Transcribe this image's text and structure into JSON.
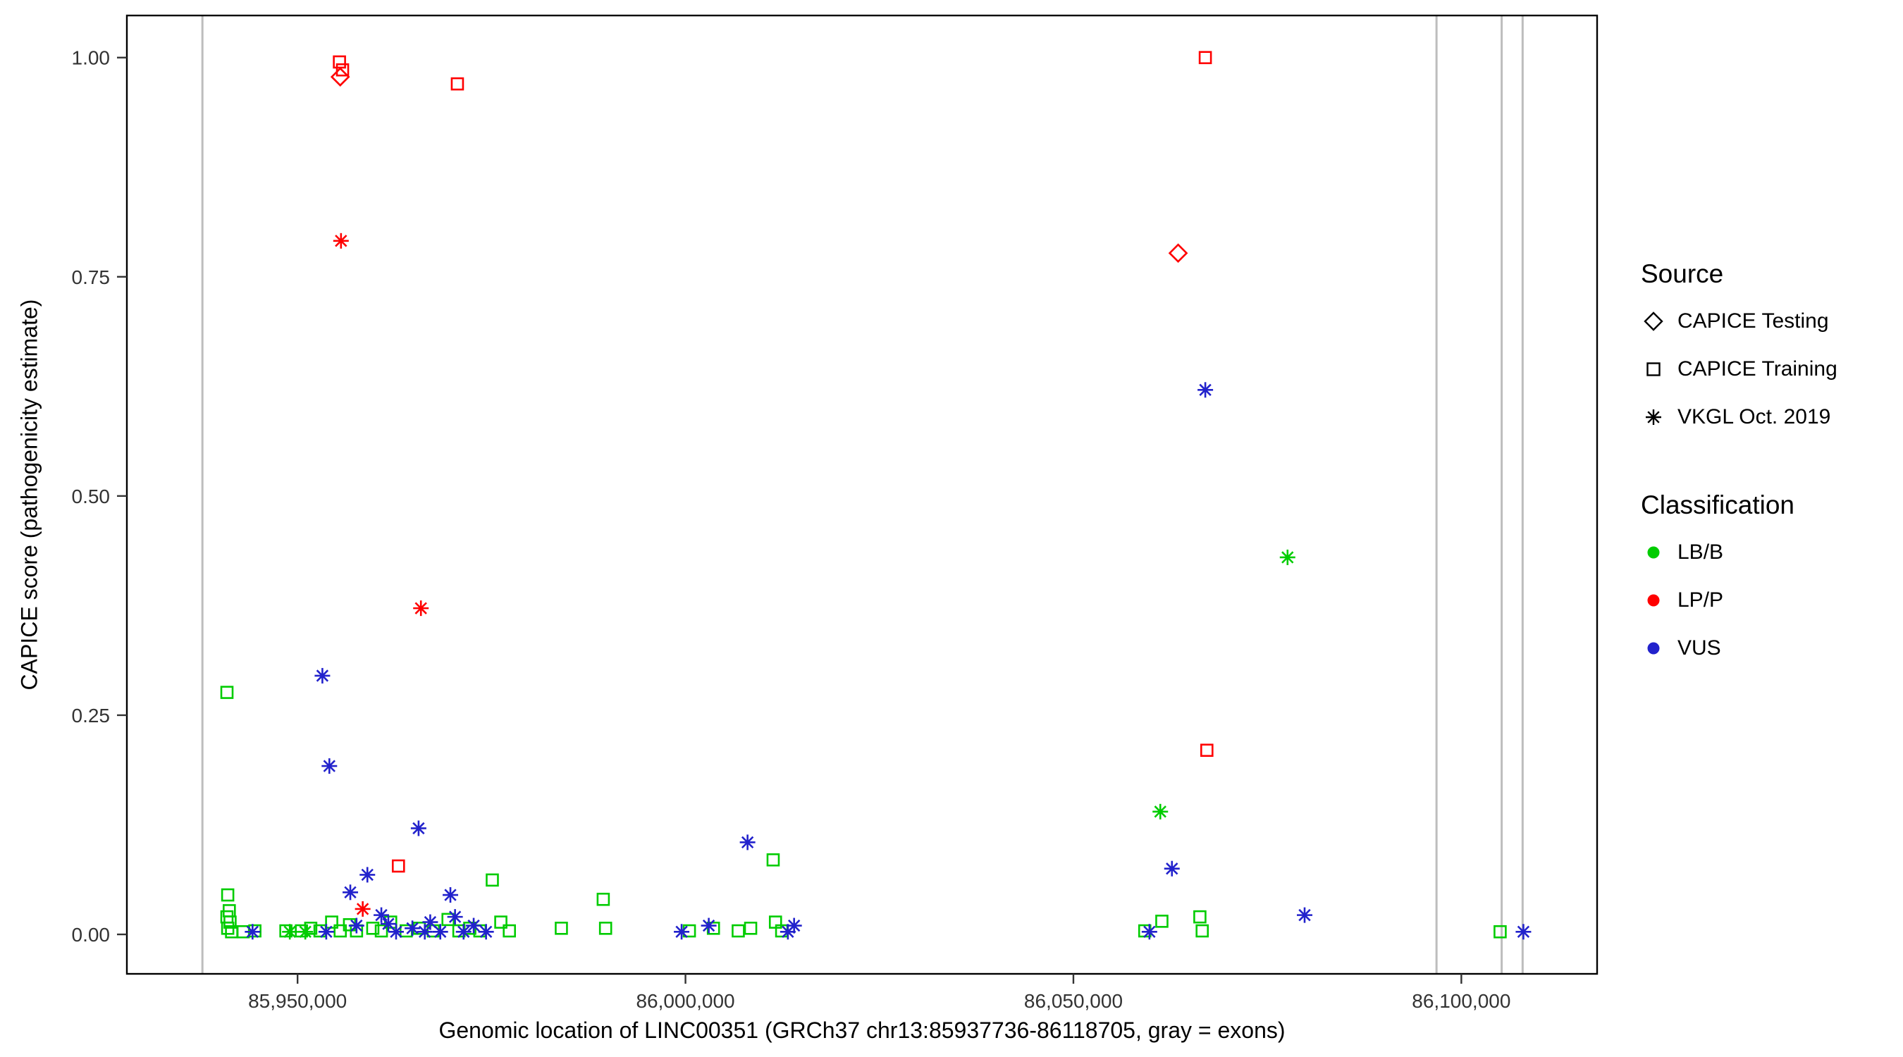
{
  "chart_data": {
    "type": "scatter",
    "title": "",
    "xlabel": "Genomic location of LINC00351 (GRCh37 chr13:85937736-86118705, gray = exons)",
    "ylabel": "CAPICE score (pathogenicity estimate)",
    "xlim": [
      85928000,
      86117500
    ],
    "ylim": [
      -0.045,
      1.048
    ],
    "grid": "off",
    "xticks": {
      "values": [
        85950000,
        86000000,
        86050000,
        86100000
      ],
      "labels": [
        "85,950,000",
        "86,000,000",
        "86,050,000",
        "86,100,000"
      ]
    },
    "yticks": {
      "values": [
        0.0,
        0.25,
        0.5,
        0.75,
        1.0
      ],
      "labels": [
        "0.00",
        "0.25",
        "0.50",
        "0.75",
        "1.00"
      ]
    },
    "exons": {
      "color": "#BDBDBD",
      "x": [
        85937736,
        86096800,
        86105200,
        86107900
      ]
    },
    "legend": {
      "position": "right",
      "source": {
        "title": "Source",
        "items": [
          {
            "label": "CAPICE Testing",
            "shape": "diamond"
          },
          {
            "label": "CAPICE Training",
            "shape": "square"
          },
          {
            "label": "VKGL Oct. 2019",
            "shape": "asterisk"
          }
        ]
      },
      "classification": {
        "title": "Classification",
        "items": [
          {
            "label": "LB/B",
            "color": "#00CC00"
          },
          {
            "label": "LP/P",
            "color": "#FF0000"
          },
          {
            "label": "VUS",
            "color": "#2222CC"
          }
        ]
      }
    },
    "series": [
      {
        "name": "CAPICE Testing / LP/P",
        "source": "CAPICE Testing",
        "classification": "LP/P",
        "shape": "diamond",
        "color": "#FF0000",
        "points": [
          [
            85955500,
            0.978
          ],
          [
            86063500,
            0.777
          ]
        ]
      },
      {
        "name": "CAPICE Training / LP/P",
        "source": "CAPICE Training",
        "classification": "LP/P",
        "shape": "square",
        "color": "#FF0000",
        "points": [
          [
            85955400,
            0.995
          ],
          [
            85955800,
            0.986
          ],
          [
            85970600,
            0.97
          ],
          [
            86067000,
            1.0
          ],
          [
            86067200,
            0.21
          ],
          [
            85963000,
            0.078
          ]
        ]
      },
      {
        "name": "VKGL Oct. 2019 / LP/P",
        "source": "VKGL Oct. 2019",
        "classification": "LP/P",
        "shape": "asterisk",
        "color": "#FF0000",
        "points": [
          [
            85955600,
            0.791
          ],
          [
            85965900,
            0.372
          ],
          [
            85958400,
            0.029
          ]
        ]
      },
      {
        "name": "CAPICE Training / LB/B",
        "source": "CAPICE Training",
        "classification": "LB/B",
        "shape": "square",
        "color": "#00CC00",
        "points": [
          [
            85940900,
            0.276
          ],
          [
            85941000,
            0.045
          ],
          [
            85941200,
            0.027
          ],
          [
            85940900,
            0.02
          ],
          [
            85941300,
            0.014
          ],
          [
            85941000,
            0.007
          ],
          [
            85941500,
            0.003
          ],
          [
            85943000,
            0.003
          ],
          [
            85944500,
            0.004
          ],
          [
            85948500,
            0.004
          ],
          [
            85950500,
            0.004
          ],
          [
            85951700,
            0.007
          ],
          [
            85952900,
            0.004
          ],
          [
            85954400,
            0.014
          ],
          [
            85955500,
            0.004
          ],
          [
            85956700,
            0.011
          ],
          [
            85957600,
            0.004
          ],
          [
            85959700,
            0.007
          ],
          [
            85960800,
            0.004
          ],
          [
            85962000,
            0.014
          ],
          [
            85964000,
            0.004
          ],
          [
            85965700,
            0.007
          ],
          [
            85967500,
            0.004
          ],
          [
            85969400,
            0.017
          ],
          [
            85970800,
            0.004
          ],
          [
            85972200,
            0.007
          ],
          [
            85973500,
            0.004
          ],
          [
            85975100,
            0.062
          ],
          [
            85976200,
            0.014
          ],
          [
            85977300,
            0.004
          ],
          [
            85984000,
            0.007
          ],
          [
            85989400,
            0.04
          ],
          [
            85989700,
            0.007
          ],
          [
            86000500,
            0.004
          ],
          [
            86003600,
            0.007
          ],
          [
            86006800,
            0.004
          ],
          [
            86008400,
            0.007
          ],
          [
            86011300,
            0.085
          ],
          [
            86011600,
            0.014
          ],
          [
            86012400,
            0.004
          ],
          [
            86059200,
            0.004
          ],
          [
            86061400,
            0.015
          ],
          [
            86066300,
            0.02
          ],
          [
            86066600,
            0.004
          ],
          [
            86105000,
            0.003
          ]
        ]
      },
      {
        "name": "VKGL Oct. 2019 / LB/B",
        "source": "VKGL Oct. 2019",
        "classification": "LB/B",
        "shape": "asterisk",
        "color": "#00CC00",
        "points": [
          [
            85949000,
            0.003
          ],
          [
            85951000,
            0.003
          ],
          [
            86061200,
            0.14
          ],
          [
            86077600,
            0.43
          ]
        ]
      },
      {
        "name": "VKGL Oct. 2019 / VUS",
        "source": "VKGL Oct. 2019",
        "classification": "VUS",
        "shape": "asterisk",
        "color": "#2222CC",
        "points": [
          [
            85953200,
            0.295
          ],
          [
            85954100,
            0.192
          ],
          [
            85956800,
            0.048
          ],
          [
            85959000,
            0.068
          ],
          [
            85965600,
            0.121
          ],
          [
            85960800,
            0.022
          ],
          [
            85961700,
            0.012
          ],
          [
            85944200,
            0.003
          ],
          [
            85953700,
            0.003
          ],
          [
            85957600,
            0.01
          ],
          [
            85962700,
            0.003
          ],
          [
            85964800,
            0.007
          ],
          [
            85966400,
            0.003
          ],
          [
            85967100,
            0.014
          ],
          [
            85968400,
            0.003
          ],
          [
            85969700,
            0.045
          ],
          [
            85970300,
            0.02
          ],
          [
            85971400,
            0.003
          ],
          [
            85972700,
            0.01
          ],
          [
            85974300,
            0.003
          ],
          [
            85999500,
            0.003
          ],
          [
            86003000,
            0.01
          ],
          [
            86008000,
            0.105
          ],
          [
            86013200,
            0.003
          ],
          [
            86014000,
            0.01
          ],
          [
            86059800,
            0.003
          ],
          [
            86062700,
            0.075
          ],
          [
            86067000,
            0.621
          ],
          [
            86079800,
            0.022
          ],
          [
            86108000,
            0.003
          ]
        ]
      }
    ]
  }
}
